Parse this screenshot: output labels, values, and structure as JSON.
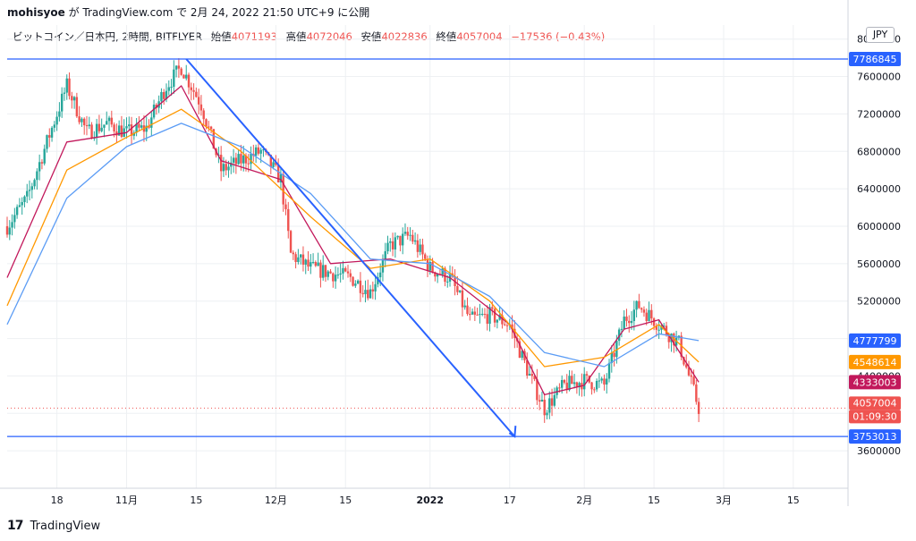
{
  "header": {
    "user": "mohisyoe",
    "text": "が TradingView.com で 2月 24, 2022 21:50 UTC+9 に公開"
  },
  "legend": {
    "symbol": "ビットコイン／日本円, 2時間, BITFLYER",
    "open_label": "始値",
    "open": "4071193",
    "high_label": "高値",
    "high": "4072046",
    "low_label": "安値",
    "low": "4022836",
    "close_label": "終値",
    "close": "4057004",
    "change": "−17536 (−0.43%)"
  },
  "currency": "JPY",
  "footer": {
    "brand": "TradingView"
  },
  "colors": {
    "up": "#26a69a",
    "down": "#ef5350",
    "trend": "#2962ff",
    "ma_short": "#c2185b",
    "ma_mid": "#ff9800",
    "ma_long": "#5b9cf5"
  },
  "chart_data": {
    "type": "line",
    "yaxis_ticks": [
      3600000,
      4000000,
      4400000,
      4800000,
      5200000,
      5600000,
      6000000,
      6400000,
      6800000,
      7200000,
      7600000,
      8000000
    ],
    "ylim": [
      3200000,
      8150000
    ],
    "xaxis_ticks": [
      "18",
      "11月",
      "15",
      "12月",
      "15",
      "2022",
      "17",
      "2月",
      "15",
      "3月",
      "15"
    ],
    "xlim": [
      "2021-10-08",
      "2022-03-26"
    ],
    "price_path": {
      "x": [
        "2021-10-08",
        "2021-10-12",
        "2021-10-16",
        "2021-10-20",
        "2021-10-24",
        "2021-10-28",
        "2021-11-01",
        "2021-11-05",
        "2021-11-09",
        "2021-11-12",
        "2021-11-16",
        "2021-11-20",
        "2021-11-24",
        "2021-11-28",
        "2021-12-02",
        "2021-12-04",
        "2021-12-08",
        "2021-12-12",
        "2021-12-16",
        "2021-12-20",
        "2021-12-24",
        "2021-12-28",
        "2022-01-01",
        "2022-01-05",
        "2022-01-09",
        "2022-01-13",
        "2022-01-17",
        "2022-01-21",
        "2022-01-24",
        "2022-01-28",
        "2022-02-01",
        "2022-02-05",
        "2022-02-09",
        "2022-02-12",
        "2022-02-16",
        "2022-02-20",
        "2022-02-24"
      ],
      "y": [
        6000000,
        6300000,
        6900000,
        7500000,
        7000000,
        7100000,
        7000000,
        7050000,
        7500000,
        7700000,
        7300000,
        6600000,
        6700000,
        6800000,
        6500000,
        5700000,
        5550000,
        5500000,
        5450000,
        5300000,
        5800000,
        5900000,
        5550000,
        5450000,
        5000000,
        5050000,
        4950000,
        4400000,
        4050000,
        4300000,
        4350000,
        4300000,
        5000000,
        5150000,
        4950000,
        4750000,
        4057004
      ]
    },
    "moving_averages": [
      {
        "color": "ma_short",
        "x": [
          "2021-10-08",
          "2021-10-20",
          "2021-11-01",
          "2021-11-12",
          "2021-11-20",
          "2021-12-02",
          "2021-12-12",
          "2021-12-24",
          "2022-01-05",
          "2022-01-17",
          "2022-01-24",
          "2022-02-01",
          "2022-02-09",
          "2022-02-16",
          "2022-02-24"
        ],
        "y": [
          5450000,
          6900000,
          7000000,
          7500000,
          6700000,
          6500000,
          5600000,
          5650000,
          5450000,
          4950000,
          4200000,
          4300000,
          4900000,
          5000000,
          4333003
        ]
      },
      {
        "color": "ma_mid",
        "x": [
          "2021-10-08",
          "2021-10-20",
          "2021-11-01",
          "2021-11-12",
          "2021-11-24",
          "2021-12-08",
          "2021-12-20",
          "2022-01-01",
          "2022-01-13",
          "2022-01-24",
          "2022-02-05",
          "2022-02-16",
          "2022-02-24"
        ],
        "y": [
          5150000,
          6600000,
          6950000,
          7250000,
          6800000,
          6100000,
          5550000,
          5650000,
          5200000,
          4500000,
          4600000,
          4950000,
          4548614
        ]
      },
      {
        "color": "ma_long",
        "x": [
          "2021-10-08",
          "2021-10-20",
          "2021-11-01",
          "2021-11-12",
          "2021-11-24",
          "2021-12-08",
          "2021-12-20",
          "2022-01-01",
          "2022-01-13",
          "2022-01-24",
          "2022-02-05",
          "2022-02-16",
          "2022-02-24"
        ],
        "y": [
          4950000,
          6300000,
          6850000,
          7100000,
          6850000,
          6350000,
          5650000,
          5600000,
          5250000,
          4650000,
          4500000,
          4850000,
          4777799
        ]
      }
    ],
    "lines": [
      {
        "type": "horizontal",
        "y": 7786845,
        "color": "trend"
      },
      {
        "type": "horizontal",
        "y": 3753013,
        "color": "trend"
      },
      {
        "type": "trend-arrow",
        "x1": "2021-11-13",
        "y1": 7786845,
        "x2": "2022-01-18",
        "y2": 3753013,
        "color": "trend"
      }
    ],
    "price_labels": [
      {
        "value": "7786845",
        "y": 7786845,
        "bg": "#2962ff"
      },
      {
        "value": "4777799",
        "y": 4777799,
        "bg": "#2962ff"
      },
      {
        "value": "4548614",
        "y": 4548614,
        "bg": "#ff9800"
      },
      {
        "value": "4333003",
        "y": 4333003,
        "bg": "#c2185b"
      },
      {
        "value": "4057004",
        "y": 4057004,
        "bg": "#ef5350"
      },
      {
        "value": "01:09:30",
        "y": 4057004,
        "bg": "#ef5350"
      },
      {
        "value": "3753013",
        "y": 3753013,
        "bg": "#2962ff"
      }
    ]
  }
}
